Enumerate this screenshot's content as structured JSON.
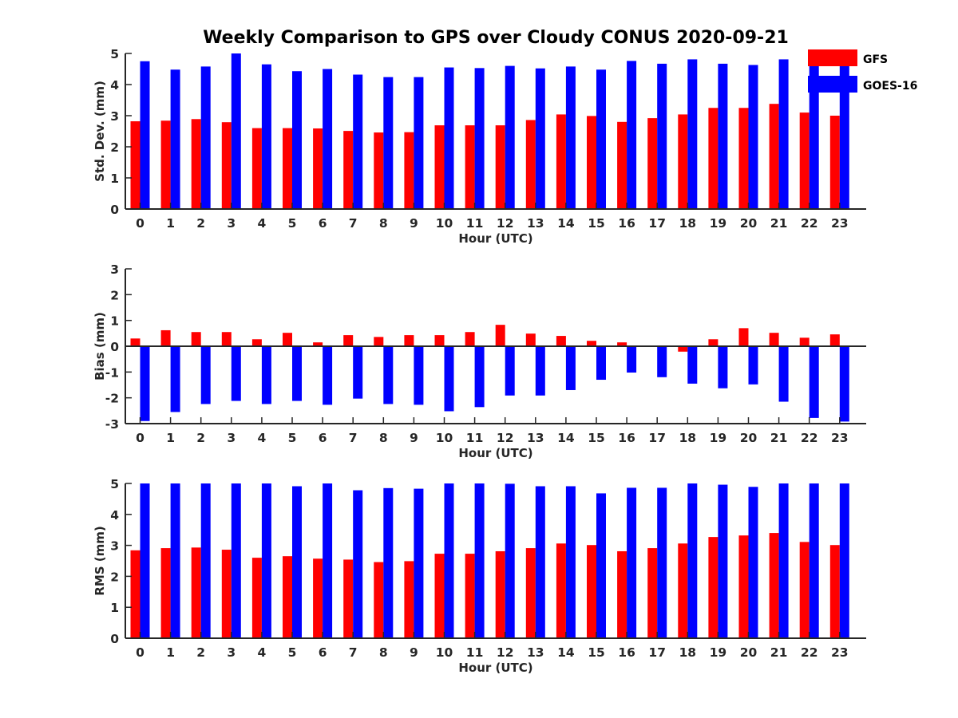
{
  "chart_data": {
    "title": "Weekly Comparison to GPS over Cloudy CONUS 2020-09-21",
    "legend": {
      "placement": "top-right, outside plot area",
      "entries": [
        {
          "name": "GFS",
          "color": "#ff0000"
        },
        {
          "name": "GOES-16",
          "color": "#0000ff"
        }
      ]
    },
    "panels": [
      {
        "type": "bar",
        "xlabel": "Hour (UTC)",
        "ylabel": "Std. Dev. (mm)",
        "ylim": [
          0,
          5
        ],
        "yticks": [
          "0",
          "1",
          "2",
          "3",
          "4",
          "5"
        ],
        "categories": [
          "0",
          "1",
          "2",
          "3",
          "4",
          "5",
          "6",
          "7",
          "8",
          "9",
          "10",
          "11",
          "12",
          "13",
          "14",
          "15",
          "16",
          "17",
          "18",
          "19",
          "20",
          "21",
          "22",
          "23"
        ],
        "series": [
          {
            "name": "GFS",
            "color": "#ff0000",
            "values": [
              2.82,
              2.84,
              2.89,
              2.79,
              2.6,
              2.6,
              2.59,
              2.51,
              2.46,
              2.47,
              2.69,
              2.69,
              2.69,
              2.86,
              3.04,
              2.99,
              2.8,
              2.92,
              3.04,
              3.25,
              3.25,
              3.38,
              3.1,
              3.0
            ]
          },
          {
            "name": "GOES-16",
            "color": "#0000ff",
            "values": [
              4.75,
              4.48,
              4.58,
              5.0,
              4.65,
              4.43,
              4.5,
              4.32,
              4.24,
              4.24,
              4.55,
              4.53,
              4.6,
              4.52,
              4.58,
              4.48,
              4.76,
              4.67,
              4.81,
              4.67,
              4.63,
              4.81,
              4.9,
              4.7
            ]
          }
        ]
      },
      {
        "type": "bar",
        "xlabel": "Hour (UTC)",
        "ylabel": "Bias (mm)",
        "ylim": [
          -3,
          3
        ],
        "yticks": [
          "-3",
          "-2",
          "-1",
          "0",
          "1",
          "2",
          "3"
        ],
        "zero_line": true,
        "categories": [
          "0",
          "1",
          "2",
          "3",
          "4",
          "5",
          "6",
          "7",
          "8",
          "9",
          "10",
          "11",
          "12",
          "13",
          "14",
          "15",
          "16",
          "17",
          "18",
          "19",
          "20",
          "21",
          "22",
          "23"
        ],
        "series": [
          {
            "name": "GFS",
            "color": "#ff0000",
            "values": [
              0.3,
              0.62,
              0.55,
              0.55,
              0.27,
              0.52,
              0.15,
              0.43,
              0.36,
              0.43,
              0.43,
              0.55,
              0.83,
              0.49,
              0.4,
              0.21,
              0.15,
              0.0,
              -0.21,
              0.27,
              0.7,
              0.52,
              0.33,
              0.46
            ]
          },
          {
            "name": "GOES-16",
            "color": "#0000ff",
            "values": [
              -2.9,
              -2.55,
              -2.24,
              -2.12,
              -2.24,
              -2.12,
              -2.27,
              -2.03,
              -2.24,
              -2.27,
              -2.52,
              -2.36,
              -1.91,
              -1.91,
              -1.7,
              -1.3,
              -1.02,
              -1.2,
              -1.45,
              -1.63,
              -1.48,
              -2.15,
              -2.78,
              -2.92
            ]
          }
        ]
      },
      {
        "type": "bar",
        "xlabel": "Hour (UTC)",
        "ylabel": "RMS (mm)",
        "ylim": [
          0,
          5
        ],
        "yticks": [
          "0",
          "1",
          "2",
          "3",
          "4",
          "5"
        ],
        "categories": [
          "0",
          "1",
          "2",
          "3",
          "4",
          "5",
          "6",
          "7",
          "8",
          "9",
          "10",
          "11",
          "12",
          "13",
          "14",
          "15",
          "16",
          "17",
          "18",
          "19",
          "20",
          "21",
          "22",
          "23"
        ],
        "series": [
          {
            "name": "GFS",
            "color": "#ff0000",
            "values": [
              2.84,
              2.91,
              2.93,
              2.86,
              2.6,
              2.65,
              2.57,
              2.54,
              2.46,
              2.49,
              2.73,
              2.73,
              2.81,
              2.91,
              3.06,
              3.01,
              2.81,
              2.91,
              3.06,
              3.27,
              3.32,
              3.4,
              3.11,
              3.01
            ]
          },
          {
            "name": "GOES-16",
            "color": "#0000ff",
            "values": [
              5.0,
              5.0,
              5.0,
              5.0,
              5.0,
              4.91,
              5.0,
              4.78,
              4.85,
              4.83,
              5.0,
              5.0,
              4.99,
              4.91,
              4.91,
              4.68,
              4.86,
              4.86,
              5.0,
              4.96,
              4.89,
              5.0,
              5.0,
              5.0
            ]
          }
        ]
      }
    ]
  }
}
